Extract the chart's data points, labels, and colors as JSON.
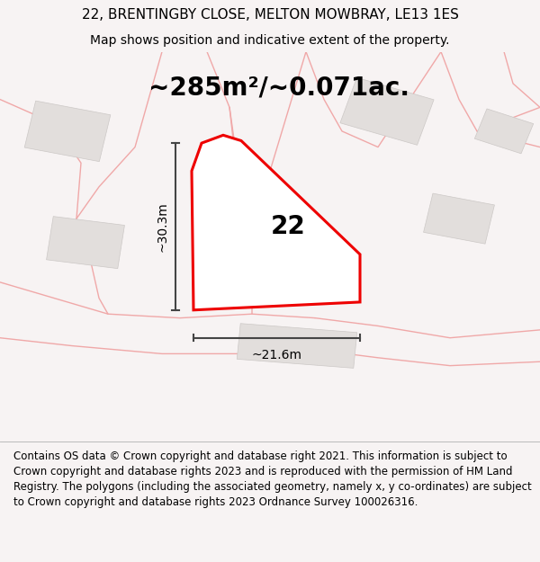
{
  "title_line1": "22, BRENTINGBY CLOSE, MELTON MOWBRAY, LE13 1ES",
  "title_line2": "Map shows position and indicative extent of the property.",
  "area_label": "~285m²/~0.071ac.",
  "plot_number": "22",
  "dim_height": "~30.3m",
  "dim_width": "~21.6m",
  "footer_text": "Contains OS data © Crown copyright and database right 2021. This information is subject to Crown copyright and database rights 2023 and is reproduced with the permission of HM Land Registry. The polygons (including the associated geometry, namely x, y co-ordinates) are subject to Crown copyright and database rights 2023 Ordnance Survey 100026316.",
  "map_bg": "#f7f3f3",
  "plot_fill": "#ffffff",
  "plot_edge": "#ee0000",
  "building_fill": "#e2dedc",
  "building_edge": "#ccc8c6",
  "road_color": "#f0a8a8",
  "dim_color": "#444444",
  "title_fontsize": 11,
  "subtitle_fontsize": 10,
  "area_fontsize": 20,
  "plot_num_fontsize": 20,
  "dim_fontsize": 10,
  "footer_fontsize": 8.5
}
